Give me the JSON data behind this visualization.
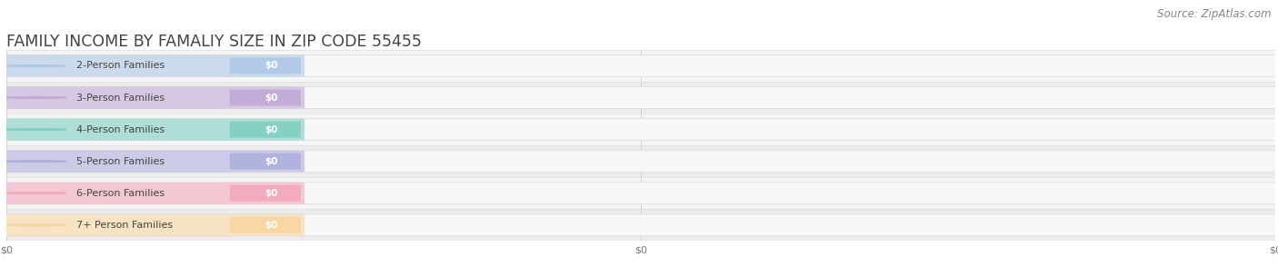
{
  "title": "FAMILY INCOME BY FAMALIY SIZE IN ZIP CODE 55455",
  "source_text": "Source: ZipAtlas.com",
  "categories": [
    "2-Person Families",
    "3-Person Families",
    "4-Person Families",
    "5-Person Families",
    "6-Person Families",
    "7+ Person Families"
  ],
  "values": [
    0,
    0,
    0,
    0,
    0,
    0
  ],
  "bar_colors": [
    "#adc8e6",
    "#c0a8d5",
    "#7ecec0",
    "#aeaedd",
    "#f2a8bb",
    "#f8d5a0"
  ],
  "bar_bg_color": "#eeeeee",
  "background_color": "#ffffff",
  "title_color": "#444444",
  "label_color": "#555555",
  "value_label_color": "#ffffff",
  "source_color": "#888888",
  "title_fontsize": 12.5,
  "label_fontsize": 8.0,
  "value_fontsize": 7.5,
  "source_fontsize": 8.5,
  "row_even_color": "#f5f5f5",
  "row_odd_color": "#ececec",
  "tick_fontsize": 8,
  "xtick_labels": [
    "$0",
    "$0",
    "$0"
  ],
  "xtick_positions": [
    0.0,
    0.5,
    1.0
  ]
}
